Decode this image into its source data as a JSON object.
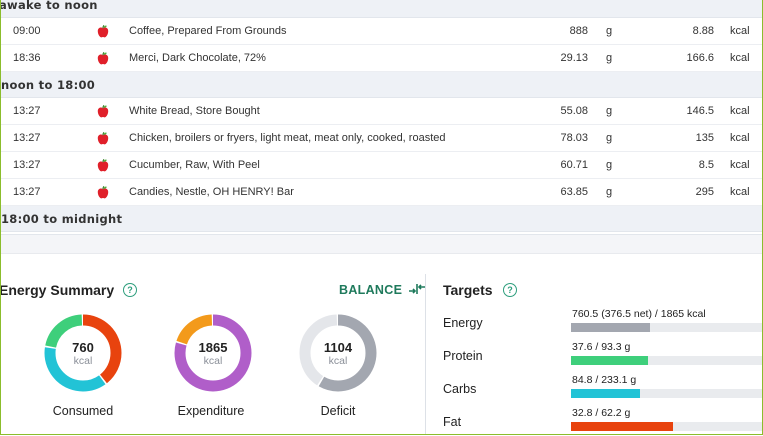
{
  "groups": [
    {
      "label": "awake to noon"
    },
    {
      "label": "noon to 18:00"
    },
    {
      "label": "18:00 to midnight"
    }
  ],
  "entries": [
    {
      "time": "09:00",
      "name": "Coffee, Prepared From Grounds",
      "amount": "888",
      "unit": "g",
      "kcal": "8.88",
      "kcal_unit": "kcal"
    },
    {
      "time": "18:36",
      "name": "Merci, Dark Chocolate, 72%",
      "amount": "29.13",
      "unit": "g",
      "kcal": "166.6",
      "kcal_unit": "kcal"
    },
    {
      "time": "13:27",
      "name": "White Bread, Store Bought",
      "amount": "55.08",
      "unit": "g",
      "kcal": "146.5",
      "kcal_unit": "kcal"
    },
    {
      "time": "13:27",
      "name": "Chicken, broilers or fryers, light meat, meat only, cooked, roasted",
      "amount": "78.03",
      "unit": "g",
      "kcal": "135",
      "kcal_unit": "kcal"
    },
    {
      "time": "13:27",
      "name": "Cucumber, Raw, With Peel",
      "amount": "60.71",
      "unit": "g",
      "kcal": "8.5",
      "kcal_unit": "kcal"
    },
    {
      "time": "13:27",
      "name": "Candies, Nestle, OH HENRY! Bar",
      "amount": "63.85",
      "unit": "g",
      "kcal": "295",
      "kcal_unit": "kcal"
    }
  ],
  "energy_summary": {
    "title": "Energy Summary",
    "help_icon": "question-circle-icon",
    "balance_label": "BALANCE",
    "balance_icon": "arrows-compress-icon",
    "rings": [
      {
        "value": "760",
        "unit": "kcal",
        "label": "Consumed",
        "segments": [
          {
            "color": "#e8430e",
            "fraction": 0.4
          },
          {
            "color": "#22c3d6",
            "fraction": 0.38
          },
          {
            "color": "#3ecf7b",
            "fraction": 0.22
          }
        ]
      },
      {
        "value": "1865",
        "unit": "kcal",
        "label": "Expenditure",
        "segments": [
          {
            "color": "#b05ec9",
            "fraction": 0.8
          },
          {
            "color": "#f39a1b",
            "fraction": 0.2
          }
        ]
      },
      {
        "value": "1104",
        "unit": "kcal",
        "label": "Deficit",
        "segments": [
          {
            "color": "#a3a7b0",
            "fraction": 0.59
          },
          {
            "color": "#e4e6ea",
            "fraction": 0.41
          }
        ]
      }
    ]
  },
  "targets": {
    "title": "Targets",
    "items": [
      {
        "label": "Energy",
        "text": "760.5 (376.5 net) / 1865 kcal",
        "fraction": 0.41,
        "color": "#a3a7b0"
      },
      {
        "label": "Protein",
        "text": "37.6 / 93.3 g",
        "fraction": 0.4,
        "color": "#3ecf7b"
      },
      {
        "label": "Carbs",
        "text": "84.8 / 233.1 g",
        "fraction": 0.36,
        "color": "#22c3d6"
      },
      {
        "label": "Fat",
        "text": "32.8 / 62.2 g",
        "fraction": 0.53,
        "color": "#e8430e"
      }
    ]
  }
}
